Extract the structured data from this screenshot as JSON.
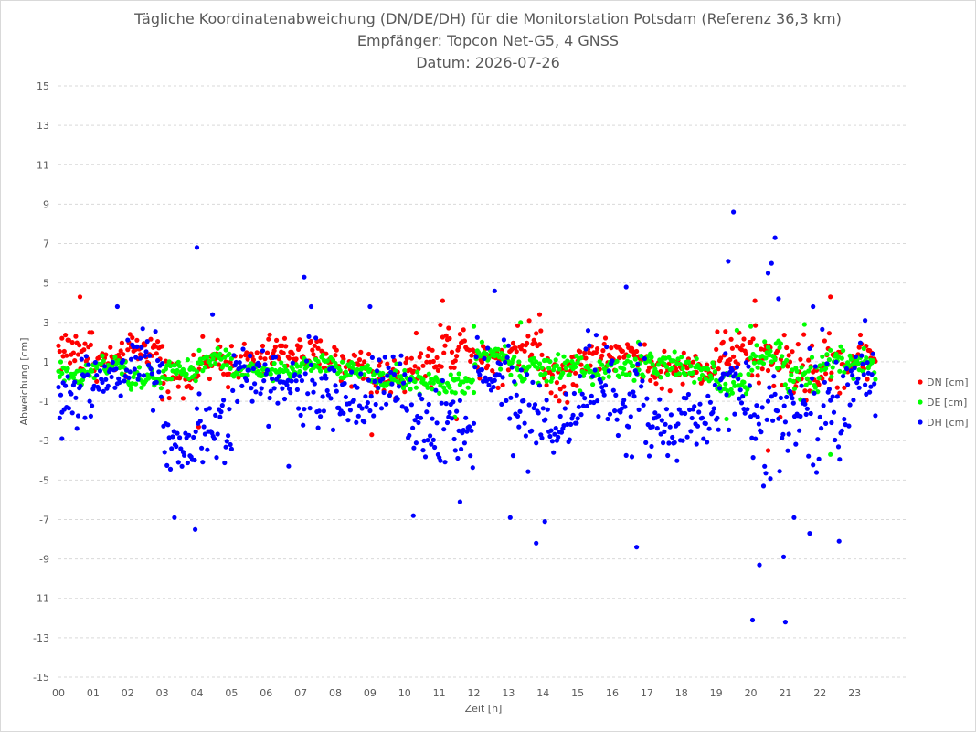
{
  "chart_data": {
    "type": "scatter",
    "title": "Tägliche Koordinatenabweichung (DN/DE/DH) für die Monitorstation Potsdam (Referenz 36,3 km)",
    "subtitle_1": "Empfänger: Topcon Net-G5, 4 GNSS",
    "subtitle_2": "Datum: 2026-07-26",
    "xlabel": "Zeit [h]",
    "ylabel": "Abweichung [cm]",
    "xlim": [
      0,
      24
    ],
    "ylim": [
      -15,
      15
    ],
    "x_ticks": [
      "00",
      "01",
      "02",
      "03",
      "04",
      "05",
      "06",
      "07",
      "08",
      "09",
      "10",
      "11",
      "12",
      "13",
      "14",
      "15",
      "16",
      "17",
      "18",
      "19",
      "20",
      "21",
      "22",
      "23"
    ],
    "y_ticks": [
      -15,
      -13,
      -11,
      -9,
      -7,
      -5,
      -3,
      -1,
      1,
      3,
      5,
      7,
      9,
      11,
      13,
      15
    ],
    "grid": "horizontal dashed",
    "legend_position": "right",
    "x_step_minutes": 2,
    "series": [
      {
        "name": "DN [cm]",
        "color": "#ff0000",
        "hourly_mean": [
          1.6,
          1.0,
          1.6,
          0.3,
          0.9,
          1.0,
          1.5,
          1.3,
          0.8,
          0.2,
          0.9,
          1.8,
          1.1,
          1.8,
          0.4,
          1.3,
          1.3,
          0.6,
          0.7,
          1.5,
          1.1,
          0.6,
          0.9,
          1.3
        ],
        "hourly_spread": [
          1.2,
          0.8,
          0.7,
          0.8,
          1.1,
          0.9,
          0.8,
          0.8,
          1.0,
          1.0,
          1.0,
          1.2,
          1.0,
          1.1,
          1.2,
          0.9,
          0.8,
          0.9,
          0.8,
          1.0,
          1.4,
          1.5,
          1.3,
          1.0
        ],
        "extremes": [
          {
            "x": 0.62,
            "y": 4.3
          },
          {
            "x": 3.0,
            "y": -0.9
          },
          {
            "x": 4.05,
            "y": -2.3
          },
          {
            "x": 9.05,
            "y": -2.7
          },
          {
            "x": 11.1,
            "y": 4.1
          },
          {
            "x": 13.9,
            "y": 3.4
          },
          {
            "x": 20.12,
            "y": 4.1
          },
          {
            "x": 20.5,
            "y": -3.5
          },
          {
            "x": 20.85,
            "y": -1.8
          },
          {
            "x": 22.3,
            "y": 4.3
          },
          {
            "x": 11.5,
            "y": -1.9
          }
        ]
      },
      {
        "name": "DE [cm]",
        "color": "#00ff00",
        "hourly_mean": [
          0.4,
          0.7,
          0.1,
          0.5,
          1.1,
          0.5,
          0.5,
          0.9,
          0.5,
          0.3,
          0.0,
          -0.2,
          1.3,
          0.6,
          0.7,
          0.5,
          0.7,
          0.9,
          0.6,
          -0.1,
          1.2,
          0.2,
          1.0,
          0.9
        ],
        "hourly_spread": [
          0.5,
          0.5,
          0.6,
          0.5,
          0.6,
          0.4,
          0.4,
          0.4,
          0.5,
          0.6,
          0.6,
          0.6,
          0.7,
          0.7,
          0.7,
          0.7,
          0.6,
          0.6,
          0.6,
          0.7,
          0.8,
          0.8,
          0.8,
          0.6
        ],
        "extremes": [
          {
            "x": 11.45,
            "y": -1.8
          },
          {
            "x": 12.0,
            "y": 2.8
          },
          {
            "x": 13.35,
            "y": 3.0
          },
          {
            "x": 16.75,
            "y": 2.0
          },
          {
            "x": 19.3,
            "y": -1.9
          },
          {
            "x": 19.6,
            "y": 2.6
          },
          {
            "x": 20.0,
            "y": 2.8
          },
          {
            "x": 21.55,
            "y": 2.9
          },
          {
            "x": 22.3,
            "y": -3.7
          }
        ]
      },
      {
        "name": "DH [cm]",
        "color": "#0000ff",
        "hourly_mean": [
          -0.8,
          0.2,
          0.6,
          -3.2,
          -2.2,
          0.5,
          -0.2,
          -0.4,
          -0.8,
          -0.5,
          -2.2,
          -2.3,
          0.6,
          -2.0,
          -2.3,
          -0.1,
          -0.6,
          -2.6,
          -1.7,
          -0.5,
          -3.0,
          -2.0,
          -0.8,
          0.3
        ],
        "hourly_spread": [
          1.8,
          1.0,
          2.2,
          1.6,
          2.0,
          1.5,
          1.4,
          2.1,
          1.6,
          1.7,
          2.0,
          1.9,
          1.5,
          2.3,
          2.0,
          2.2,
          2.5,
          1.6,
          1.4,
          1.9,
          3.0,
          3.2,
          2.8,
          1.6
        ],
        "extremes": [
          {
            "x": 0.1,
            "y": -2.9
          },
          {
            "x": 1.7,
            "y": 3.8
          },
          {
            "x": 3.35,
            "y": -6.9
          },
          {
            "x": 3.95,
            "y": -7.5
          },
          {
            "x": 4.0,
            "y": 6.8
          },
          {
            "x": 4.45,
            "y": 3.4
          },
          {
            "x": 7.1,
            "y": 5.3
          },
          {
            "x": 7.3,
            "y": 3.8
          },
          {
            "x": 6.65,
            "y": -4.3
          },
          {
            "x": 9.0,
            "y": 3.8
          },
          {
            "x": 10.25,
            "y": -6.8
          },
          {
            "x": 11.6,
            "y": -6.1
          },
          {
            "x": 12.6,
            "y": 4.6
          },
          {
            "x": 13.05,
            "y": -6.9
          },
          {
            "x": 13.8,
            "y": -8.2
          },
          {
            "x": 14.05,
            "y": -7.1
          },
          {
            "x": 16.4,
            "y": 4.8
          },
          {
            "x": 16.7,
            "y": -8.4
          },
          {
            "x": 19.5,
            "y": 8.6
          },
          {
            "x": 19.35,
            "y": 6.1
          },
          {
            "x": 20.05,
            "y": -12.1
          },
          {
            "x": 20.25,
            "y": -9.3
          },
          {
            "x": 20.7,
            "y": 7.3
          },
          {
            "x": 20.6,
            "y": 6.0
          },
          {
            "x": 20.5,
            "y": 5.5
          },
          {
            "x": 21.0,
            "y": -12.2
          },
          {
            "x": 20.95,
            "y": -8.9
          },
          {
            "x": 21.25,
            "y": -6.9
          },
          {
            "x": 21.7,
            "y": -7.7
          },
          {
            "x": 22.55,
            "y": -8.1
          },
          {
            "x": 21.8,
            "y": 3.8
          },
          {
            "x": 23.3,
            "y": 3.1
          },
          {
            "x": 20.8,
            "y": 4.2
          }
        ]
      }
    ]
  }
}
